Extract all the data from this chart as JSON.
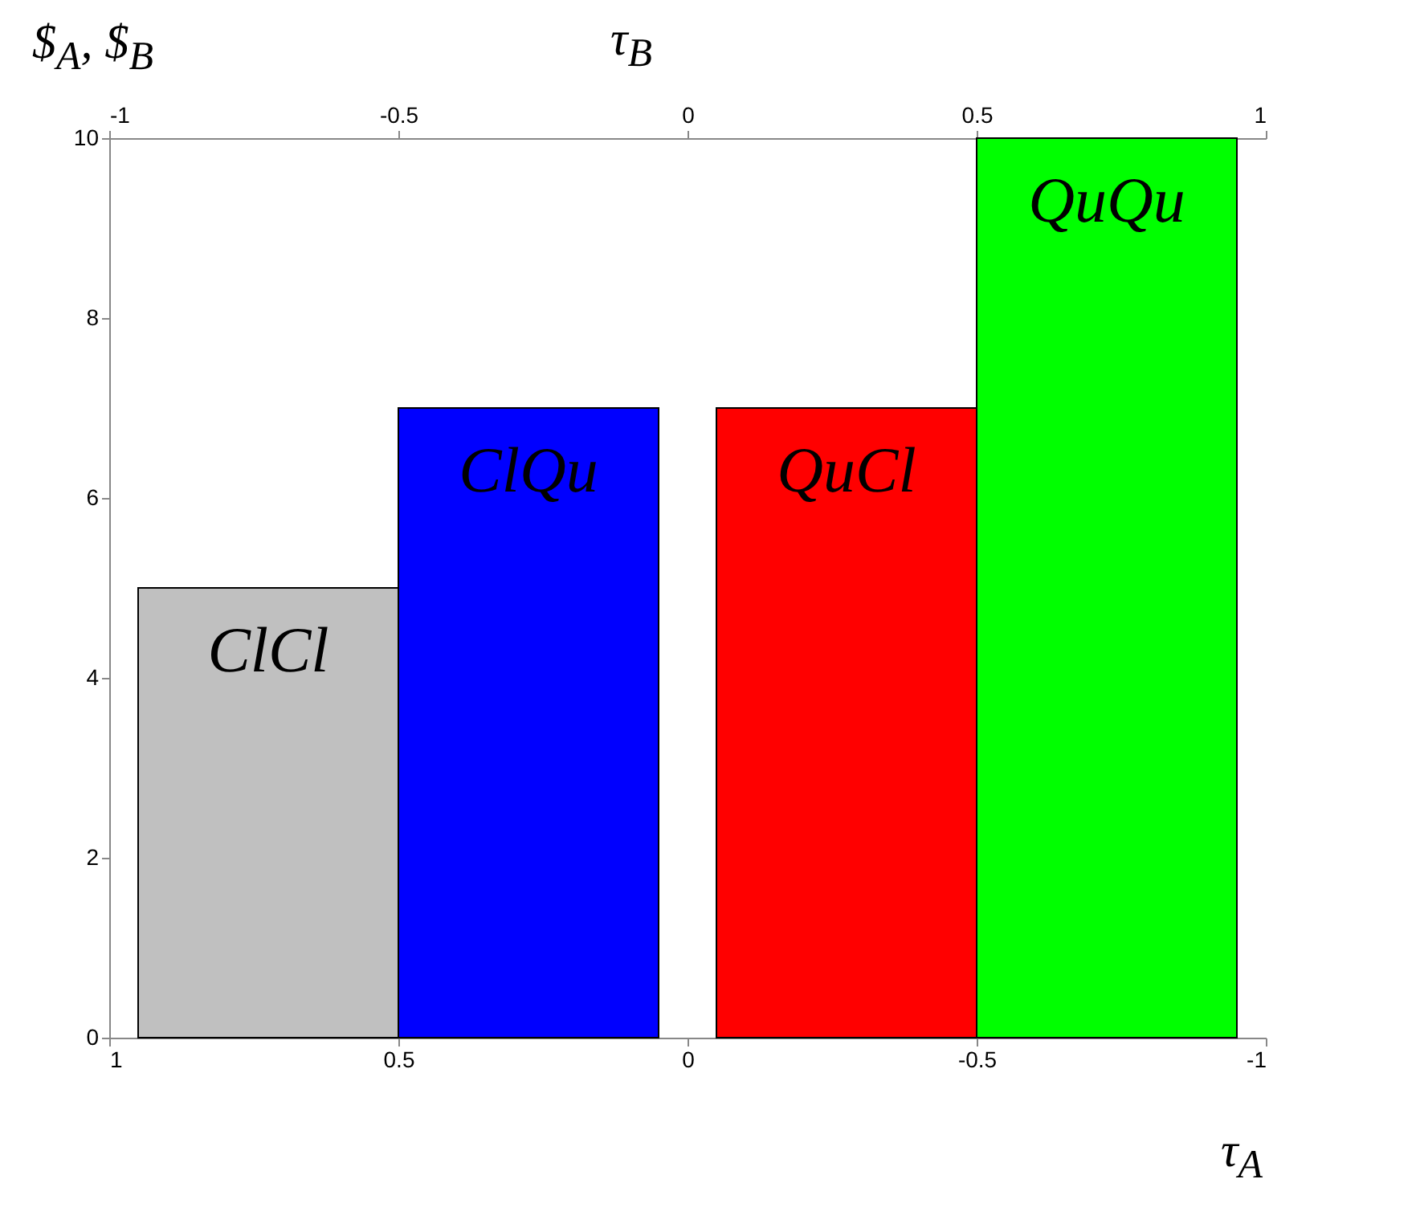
{
  "chart_data": {
    "type": "bar",
    "xlabel": "τ$_{A}$",
    "ylabel": "$$_{A}$, $$_{B}$",
    "x2label": "τ$_{B}$",
    "x": [
      0.5,
      -0.5
    ],
    "series": [
      {
        "colors": [
          "#c0c0c0",
          "#ff0000"
        ],
        "values": [
          5,
          7
        ],
        "value_labels": [
          "ClCl",
          "QuCl"
        ]
      },
      {
        "colors": [
          "#0000ff",
          "#00ff00"
        ],
        "values": [
          7,
          10
        ],
        "value_labels": [
          "ClQu",
          "QuQu"
        ]
      }
    ],
    "xlim": [
      1,
      -1
    ],
    "xticks": [
      -1,
      -0.5,
      0,
      0.5,
      1
    ],
    "x2lim": [
      -1,
      1
    ],
    "x2ticks": [
      -1,
      -0.5,
      0,
      0.5,
      1
    ],
    "ylim": [
      0,
      10
    ],
    "yticks": [
      0,
      2,
      4,
      6,
      8,
      10
    ],
    "grid": false
  }
}
